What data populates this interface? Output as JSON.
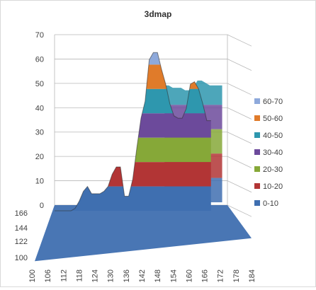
{
  "chart_data": {
    "type": "surface",
    "title": "3dmap",
    "xlabel": "",
    "ylabel": "",
    "zlim": [
      0,
      70
    ],
    "z_ticks": [
      0,
      10,
      20,
      30,
      40,
      50,
      60,
      70
    ],
    "x_ticks": [
      "100",
      "106",
      "112",
      "118",
      "124",
      "130",
      "136",
      "142",
      "148",
      "154",
      "160",
      "166",
      "172",
      "178",
      "184"
    ],
    "depth_ticks": [
      "100",
      "122",
      "144",
      "166"
    ],
    "x_range": [
      100,
      184
    ],
    "grid": true,
    "legend_position": "right",
    "bands": [
      {
        "name": "60-70",
        "range": [
          60,
          70
        ],
        "color": "#8EA9DB"
      },
      {
        "name": "50-60",
        "range": [
          50,
          60
        ],
        "color": "#E07B2A"
      },
      {
        "name": "40-50",
        "range": [
          40,
          50
        ],
        "color": "#2E97AE"
      },
      {
        "name": "30-40",
        "range": [
          30,
          40
        ],
        "color": "#6C4A9B"
      },
      {
        "name": "20-30",
        "range": [
          20,
          30
        ],
        "color": "#86A838"
      },
      {
        "name": "10-20",
        "range": [
          10,
          20
        ],
        "color": "#B23535"
      },
      {
        "name": "0-10",
        "range": [
          0,
          10
        ],
        "color": "#3F6FB0"
      }
    ],
    "front_profile": {
      "x": [
        100,
        104,
        106,
        108,
        110,
        112,
        114,
        116,
        118,
        120,
        122,
        124,
        126,
        128,
        130,
        132,
        134,
        136,
        138,
        140,
        142,
        144,
        146,
        148,
        150,
        152,
        154,
        156,
        158,
        160,
        162,
        164,
        166,
        168,
        170,
        172,
        174,
        176
      ],
      "z": [
        0,
        0,
        0,
        0,
        1,
        4,
        8,
        10,
        7,
        7,
        7,
        8,
        10,
        15,
        18,
        18,
        6,
        6,
        13,
        26,
        38,
        45,
        62,
        65,
        65,
        58,
        52,
        44,
        39,
        38,
        38,
        42,
        52,
        53,
        50,
        44,
        37,
        37
      ]
    },
    "back_profile": {
      "x": [
        150,
        152,
        154,
        156,
        158,
        160,
        162,
        164,
        166,
        168,
        170,
        172,
        174,
        176,
        178
      ],
      "z": [
        48,
        48,
        47,
        47,
        47,
        46,
        46,
        47,
        50,
        50,
        49,
        48,
        48,
        48,
        48
      ]
    }
  }
}
